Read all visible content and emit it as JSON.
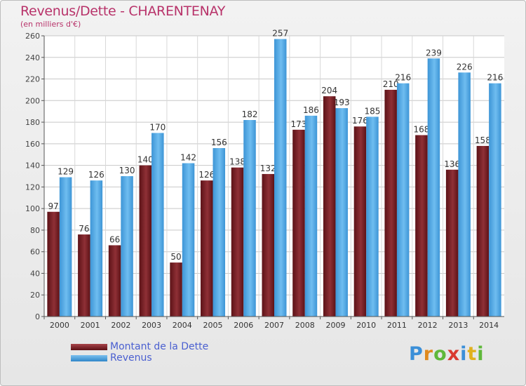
{
  "chart_data": {
    "type": "bar",
    "title": "Revenus/Dette - CHARENTENAY",
    "subtitle": "(en milliers d'€)",
    "categories": [
      "2000",
      "2001",
      "2002",
      "2003",
      "2004",
      "2005",
      "2006",
      "2007",
      "2008",
      "2009",
      "2010",
      "2011",
      "2012",
      "2013",
      "2014"
    ],
    "series": [
      {
        "name": "Montant de la Dette",
        "color": "#7a1f24",
        "values": [
          97,
          76,
          66,
          140,
          50,
          126,
          138,
          132,
          173,
          204,
          176,
          210,
          168,
          136,
          158
        ]
      },
      {
        "name": "Revenus",
        "color": "#4fa6e3",
        "values": [
          129,
          126,
          130,
          170,
          142,
          156,
          182,
          257,
          186,
          193,
          185,
          216,
          239,
          226,
          216
        ]
      }
    ],
    "ylim": [
      0,
      260
    ],
    "yticks": [
      0,
      20,
      40,
      60,
      80,
      100,
      120,
      140,
      160,
      180,
      200,
      220,
      240,
      260
    ],
    "grid": true,
    "legend_position": "bottom-left"
  },
  "logo": {
    "letters": [
      "P",
      "r",
      "o",
      "x",
      "i",
      "t",
      "i"
    ],
    "colors": [
      "#3b8fd8",
      "#e08a1e",
      "#5fb83a",
      "#d93a2f",
      "#3b8fd8",
      "#e0b11e",
      "#5fb83a"
    ]
  }
}
